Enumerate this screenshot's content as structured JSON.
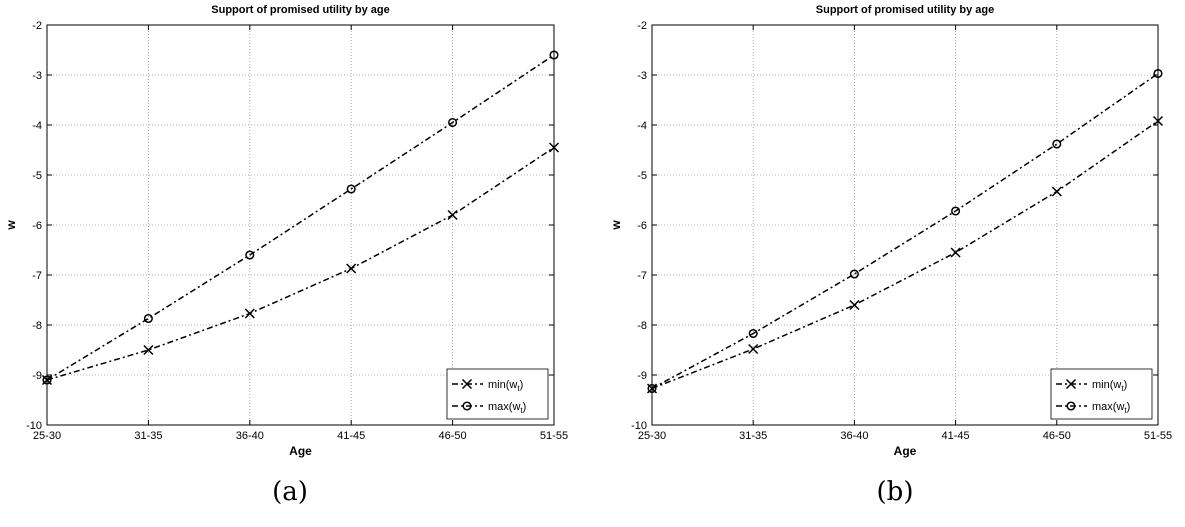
{
  "chart_data": [
    {
      "type": "line",
      "title": "Support of promised utility by age",
      "xlabel": "Age",
      "ylabel": "w",
      "caption": "(a)",
      "categories": [
        "25-30",
        "31-35",
        "36-40",
        "41-45",
        "46-50",
        "51-55"
      ],
      "ylim": [
        -10,
        -2
      ],
      "yticks": [
        -10,
        -9,
        -8,
        -7,
        -6,
        -5,
        -4,
        -3,
        -2
      ],
      "grid": true,
      "legend_position": "bottom-right",
      "series": [
        {
          "name": "min(w",
          "subscript": "t",
          "name_suffix": ")",
          "marker": "x",
          "values": [
            -9.1,
            -8.5,
            -7.77,
            -6.87,
            -5.8,
            -4.45
          ]
        },
        {
          "name": "max(w",
          "subscript": "t",
          "name_suffix": ")",
          "marker": "o",
          "values": [
            -9.1,
            -7.87,
            -6.6,
            -5.28,
            -3.95,
            -2.6
          ]
        }
      ]
    },
    {
      "type": "line",
      "title": "Support of promised utility by age",
      "xlabel": "Age",
      "ylabel": "w",
      "caption": "(b)",
      "categories": [
        "25-30",
        "31-35",
        "36-40",
        "41-45",
        "46-50",
        "51-55"
      ],
      "ylim": [
        -10,
        -2
      ],
      "yticks": [
        -10,
        -9,
        -8,
        -7,
        -6,
        -5,
        -4,
        -3,
        -2
      ],
      "grid": true,
      "legend_position": "bottom-right",
      "series": [
        {
          "name": "min(w",
          "subscript": "t",
          "name_suffix": ")",
          "marker": "x",
          "values": [
            -9.27,
            -8.48,
            -7.6,
            -6.55,
            -5.33,
            -3.92
          ]
        },
        {
          "name": "max(w",
          "subscript": "t",
          "name_suffix": ")",
          "marker": "o",
          "values": [
            -9.27,
            -8.17,
            -6.98,
            -5.72,
            -4.38,
            -2.97
          ]
        }
      ]
    }
  ]
}
